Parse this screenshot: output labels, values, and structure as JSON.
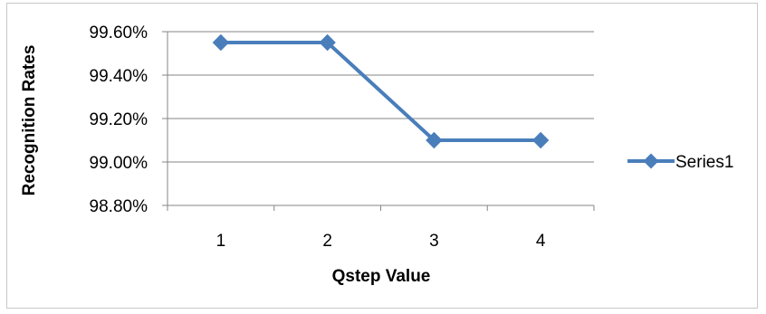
{
  "chart_data": {
    "type": "line",
    "categories": [
      "1",
      "2",
      "3",
      "4"
    ],
    "series": [
      {
        "name": "Series1",
        "values": [
          99.55,
          99.55,
          99.1,
          99.1
        ]
      }
    ],
    "xlabel": "Qstep Value",
    "ylabel": "Recognition Rates",
    "ylim": [
      98.8,
      99.6
    ],
    "yticks": [
      "99.60%",
      "99.40%",
      "99.20%",
      "99.00%",
      "98.80%"
    ],
    "ytick_values": [
      99.6,
      99.4,
      99.2,
      99.0,
      98.8
    ],
    "grid": "horizontal",
    "legend": "right",
    "line_color": "#4a7ebb"
  }
}
